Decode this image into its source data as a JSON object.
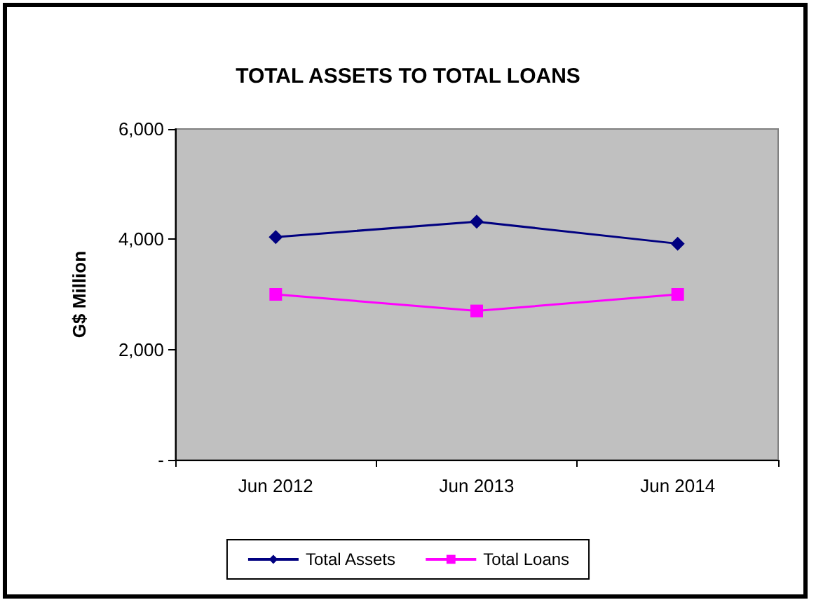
{
  "chart_data": {
    "type": "line",
    "title": "TOTAL ASSETS TO TOTAL LOANS",
    "ylabel": "G$ Million",
    "categories": [
      "Jun 2012",
      "Jun 2013",
      "Jun 2014"
    ],
    "series": [
      {
        "name": "Total Assets",
        "color": "#000080",
        "marker": "diamond",
        "values": [
          4040,
          4320,
          3920
        ]
      },
      {
        "name": "Total Loans",
        "color": "#ff00ff",
        "marker": "square",
        "values": [
          3000,
          2700,
          3000
        ]
      }
    ],
    "ylim": [
      0,
      6000
    ],
    "yticks": [
      {
        "value": 0,
        "label": "-"
      },
      {
        "value": 2000,
        "label": "2,000"
      },
      {
        "value": 4000,
        "label": "4,000"
      },
      {
        "value": 6000,
        "label": "6,000"
      }
    ],
    "grid": false,
    "legend": "bottom"
  }
}
